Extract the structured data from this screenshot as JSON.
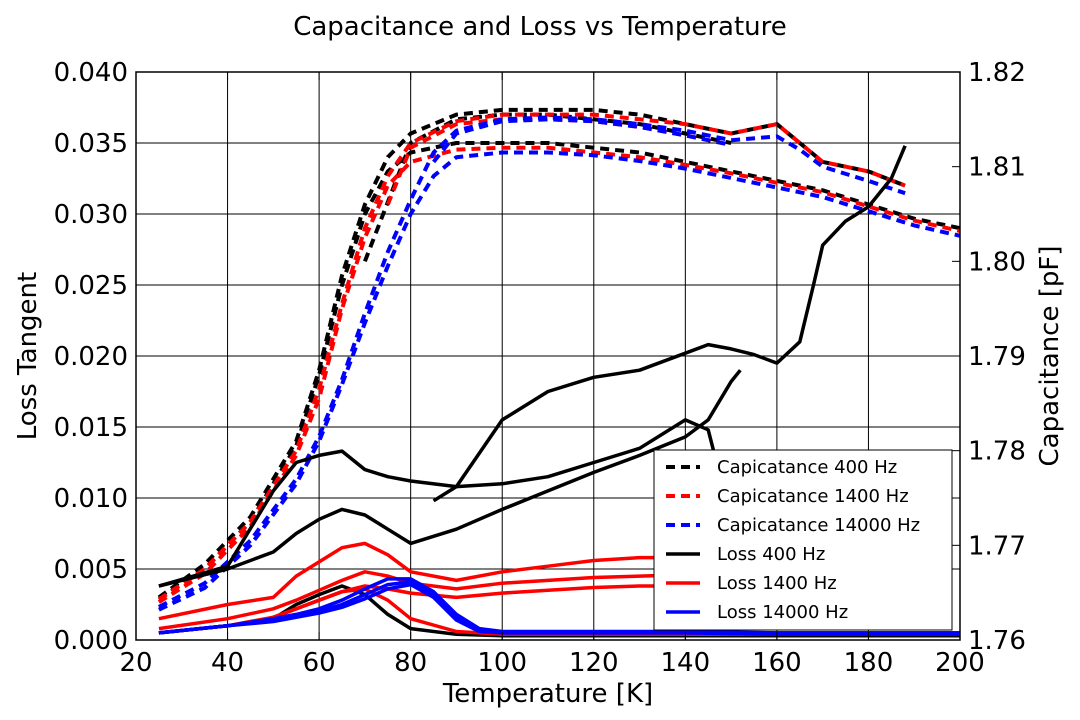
{
  "chart_data": {
    "type": "line",
    "title": "Capacitance and Loss vs Temperature",
    "xlabel": "Temperature [K]",
    "ylabel_left": "Loss Tangent",
    "ylabel_right": "Capacitance [pF]",
    "xlim": [
      20,
      200
    ],
    "ylim_left": [
      0.0,
      0.04
    ],
    "ylim_right": [
      1.76,
      1.82
    ],
    "xticks": [
      "20",
      "40",
      "60",
      "80",
      "100",
      "120",
      "140",
      "160",
      "180",
      "200"
    ],
    "yticks_left": [
      "0.000",
      "0.005",
      "0.010",
      "0.015",
      "0.020",
      "0.025",
      "0.030",
      "0.035",
      "0.040"
    ],
    "yticks_right": [
      "1.76",
      "1.77",
      "1.78",
      "1.79",
      "1.80",
      "1.81",
      "1.82"
    ],
    "grid": true,
    "legend_position": "lower-right",
    "colors": {
      "400 Hz": "#000000",
      "1400 Hz": "#ff0000",
      "14000 Hz": "#0000ff"
    },
    "series": [
      {
        "name": "Capicatance 400 Hz",
        "axis": "right",
        "style": "dashed",
        "color": "#000000",
        "sweeps": [
          {
            "x": [
              25,
              35,
              45,
              55,
              60,
              65,
              70,
              75,
              80,
              90,
              100,
              110,
              120,
              130,
              140,
              150,
              160,
              165,
              170,
              180,
              188
            ],
            "y": [
              1.7645,
              1.768,
              1.773,
              1.781,
              1.7885,
              1.7985,
              1.806,
              1.811,
              1.8135,
              1.8155,
              1.816,
              1.816,
              1.816,
              1.8155,
              1.8145,
              1.8135,
              1.8145,
              1.8125,
              1.8105,
              1.8095,
              1.808
            ]
          },
          {
            "x": [
              25,
              35,
              45,
              55,
              60,
              65,
              70,
              75,
              80,
              90,
              100,
              110,
              120,
              130,
              140,
              150,
              160,
              170,
              180,
              190,
              200
            ],
            "y": [
              1.7643,
              1.7675,
              1.7725,
              1.7805,
              1.788,
              1.7975,
              1.805,
              1.8095,
              1.8115,
              1.8125,
              1.8125,
              1.8125,
              1.812,
              1.8115,
              1.8105,
              1.8095,
              1.8085,
              1.8075,
              1.806,
              1.8045,
              1.8035
            ]
          },
          {
            "x": [
              70,
              80,
              90,
              100,
              110,
              120,
              130,
              140,
              150
            ],
            "y": [
              1.8,
              1.8125,
              1.815,
              1.8155,
              1.8155,
              1.815,
              1.8145,
              1.8135,
              1.8125
            ]
          }
        ]
      },
      {
        "name": "Capicatance 1400 Hz",
        "axis": "right",
        "style": "dashed",
        "color": "#ff0000",
        "sweeps": [
          {
            "x": [
              25,
              35,
              45,
              55,
              60,
              65,
              70,
              75,
              80,
              90,
              100,
              110,
              120,
              130,
              140,
              150,
              160,
              165,
              170,
              180,
              188
            ],
            "y": [
              1.7643,
              1.7675,
              1.7725,
              1.78,
              1.7865,
              1.7955,
              1.8035,
              1.809,
              1.8125,
              1.8148,
              1.8155,
              1.8155,
              1.8155,
              1.815,
              1.8145,
              1.8135,
              1.8145,
              1.8125,
              1.8105,
              1.8095,
              1.808
            ]
          },
          {
            "x": [
              25,
              35,
              45,
              55,
              60,
              65,
              70,
              75,
              80,
              90,
              100,
              110,
              120,
              130,
              140,
              150,
              160,
              170,
              180,
              190,
              200
            ],
            "y": [
              1.764,
              1.767,
              1.772,
              1.7795,
              1.7855,
              1.795,
              1.8025,
              1.808,
              1.8105,
              1.8118,
              1.812,
              1.812,
              1.8115,
              1.811,
              1.8102,
              1.8093,
              1.8083,
              1.8073,
              1.8058,
              1.8043,
              1.8032
            ]
          },
          {
            "x": [
              75,
              80,
              90,
              100,
              110,
              120,
              130,
              140,
              150
            ],
            "y": [
              1.806,
              1.812,
              1.8145,
              1.815,
              1.815,
              1.8148,
              1.8142,
              1.8133,
              1.8123
            ]
          }
        ]
      },
      {
        "name": "Capicatance 14000 Hz",
        "axis": "right",
        "style": "dashed",
        "color": "#0000ff",
        "sweeps": [
          {
            "x": [
              25,
              35,
              45,
              55,
              60,
              65,
              70,
              75,
              80,
              85,
              90,
              100,
              110,
              120,
              130,
              140,
              150,
              160,
              165,
              170,
              180,
              188
            ],
            "y": [
              1.7635,
              1.766,
              1.7705,
              1.777,
              1.7815,
              1.7875,
              1.7945,
              1.801,
              1.8065,
              1.8115,
              1.8138,
              1.815,
              1.8152,
              1.815,
              1.8145,
              1.8138,
              1.8128,
              1.8132,
              1.8118,
              1.81,
              1.8085,
              1.8072
            ]
          },
          {
            "x": [
              25,
              35,
              45,
              55,
              60,
              65,
              70,
              75,
              80,
              85,
              90,
              100,
              110,
              120,
              130,
              140,
              150,
              160,
              170,
              180,
              190,
              200
            ],
            "y": [
              1.7632,
              1.7655,
              1.77,
              1.7765,
              1.781,
              1.787,
              1.7935,
              1.7995,
              1.805,
              1.809,
              1.811,
              1.8115,
              1.8115,
              1.8112,
              1.8106,
              1.8098,
              1.8088,
              1.8078,
              1.8068,
              1.8053,
              1.8038,
              1.8027
            ]
          },
          {
            "x": [
              85,
              90,
              100,
              110,
              120,
              130,
              140,
              150
            ],
            "y": [
              1.8105,
              1.8135,
              1.8148,
              1.815,
              1.8148,
              1.8142,
              1.8133,
              1.8123
            ]
          }
        ]
      },
      {
        "name": "Loss 400 Hz",
        "axis": "left",
        "style": "solid",
        "color": "#000000",
        "sweeps": [
          {
            "x": [
              25,
              40,
              50,
              55,
              60,
              65,
              70,
              75,
              80,
              90,
              100,
              110,
              120,
              130,
              140,
              145,
              150,
              155,
              160,
              165,
              168,
              170,
              175,
              180,
              185,
              188
            ],
            "y": [
              0.0038,
              0.0052,
              0.0105,
              0.0125,
              0.013,
              0.0133,
              0.012,
              0.0115,
              0.0112,
              0.0108,
              0.0155,
              0.0175,
              0.0185,
              0.019,
              0.0202,
              0.0208,
              0.0205,
              0.0201,
              0.0195,
              0.021,
              0.025,
              0.0278,
              0.0295,
              0.0305,
              0.0325,
              0.0348
            ]
          },
          {
            "x": [
              25,
              40,
              50,
              55,
              60,
              65,
              70,
              75,
              80,
              90,
              100,
              110,
              120,
              130,
              140,
              145,
              150,
              152
            ],
            "y": [
              0.0038,
              0.005,
              0.0062,
              0.0075,
              0.0085,
              0.0092,
              0.0088,
              0.0078,
              0.0068,
              0.0078,
              0.0092,
              0.0105,
              0.0118,
              0.013,
              0.0143,
              0.0155,
              0.0182,
              0.019
            ]
          },
          {
            "x": [
              85,
              90,
              100,
              110,
              120,
              130,
              140,
              145,
              150
            ],
            "y": [
              0.0098,
              0.0108,
              0.011,
              0.0115,
              0.0125,
              0.0135,
              0.0155,
              0.0148,
              0.0085
            ]
          },
          {
            "x": [
              25,
              40,
              50,
              55,
              60,
              65,
              70,
              75,
              80,
              90,
              100,
              120,
              140,
              160,
              180,
              200
            ],
            "y": [
              0.0005,
              0.001,
              0.0015,
              0.0025,
              0.0032,
              0.0038,
              0.0032,
              0.0018,
              0.0008,
              0.0004,
              0.0003,
              0.0003,
              0.0003,
              0.0003,
              0.0003,
              0.0003
            ]
          }
        ]
      },
      {
        "name": "Loss 1400 Hz",
        "axis": "left",
        "style": "solid",
        "color": "#ff0000",
        "sweeps": [
          {
            "x": [
              25,
              40,
              50,
              55,
              60,
              65,
              70,
              75,
              80,
              90,
              100,
              110,
              120,
              130,
              140,
              150
            ],
            "y": [
              0.0015,
              0.0025,
              0.003,
              0.0045,
              0.0055,
              0.0065,
              0.0068,
              0.006,
              0.0048,
              0.0042,
              0.0048,
              0.0052,
              0.0056,
              0.0058,
              0.0058,
              0.0056
            ]
          },
          {
            "x": [
              25,
              40,
              50,
              55,
              60,
              65,
              70,
              75,
              80,
              90,
              100,
              110,
              120,
              130,
              140,
              150
            ],
            "y": [
              0.0008,
              0.0015,
              0.0022,
              0.0028,
              0.0035,
              0.0042,
              0.0048,
              0.0045,
              0.004,
              0.0036,
              0.004,
              0.0042,
              0.0044,
              0.0045,
              0.0046,
              0.0047
            ]
          },
          {
            "x": [
              25,
              40,
              50,
              55,
              60,
              65,
              70,
              75,
              80,
              90,
              100,
              110,
              120,
              130,
              140,
              150
            ],
            "y": [
              0.0005,
              0.001,
              0.0016,
              0.0022,
              0.0028,
              0.0034,
              0.0038,
              0.0036,
              0.0033,
              0.003,
              0.0033,
              0.0035,
              0.0037,
              0.0038,
              0.0038,
              0.0038
            ]
          },
          {
            "x": [
              25,
              40,
              50,
              55,
              60,
              65,
              70,
              75,
              80,
              90,
              100,
              120,
              140,
              160,
              180,
              200
            ],
            "y": [
              0.0005,
              0.001,
              0.0016,
              0.0022,
              0.0028,
              0.0034,
              0.0036,
              0.0028,
              0.0015,
              0.0006,
              0.0004,
              0.0004,
              0.0004,
              0.0004,
              0.0004,
              0.0004
            ]
          }
        ]
      },
      {
        "name": "Loss 14000 Hz",
        "axis": "left",
        "style": "solid",
        "color": "#0000ff",
        "sweeps": [
          {
            "x": [
              25,
              40,
              50,
              55,
              60,
              65,
              70,
              75,
              80,
              85,
              90,
              95,
              100,
              120,
              140,
              160,
              180,
              200
            ],
            "y": [
              0.0005,
              0.001,
              0.0015,
              0.0018,
              0.0022,
              0.0028,
              0.0036,
              0.0043,
              0.0043,
              0.0034,
              0.0018,
              0.0008,
              0.0006,
              0.0006,
              0.0006,
              0.0005,
              0.0005,
              0.0005
            ]
          },
          {
            "x": [
              25,
              40,
              50,
              55,
              60,
              65,
              70,
              75,
              80,
              85,
              90,
              95,
              100,
              120,
              140,
              160,
              180,
              200
            ],
            "y": [
              0.0005,
              0.001,
              0.0014,
              0.0017,
              0.002,
              0.0025,
              0.0032,
              0.0039,
              0.0041,
              0.0032,
              0.0016,
              0.0007,
              0.0005,
              0.0005,
              0.0005,
              0.0005,
              0.0005,
              0.0005
            ]
          },
          {
            "x": [
              25,
              40,
              50,
              55,
              60,
              65,
              70,
              75,
              80,
              85,
              90,
              95,
              100,
              120,
              140,
              160,
              180,
              200
            ],
            "y": [
              0.0005,
              0.001,
              0.0013,
              0.0016,
              0.0019,
              0.0023,
              0.0029,
              0.0036,
              0.0039,
              0.003,
              0.0014,
              0.0006,
              0.0005,
              0.0005,
              0.0005,
              0.0004,
              0.0004,
              0.0004
            ]
          }
        ]
      }
    ]
  }
}
